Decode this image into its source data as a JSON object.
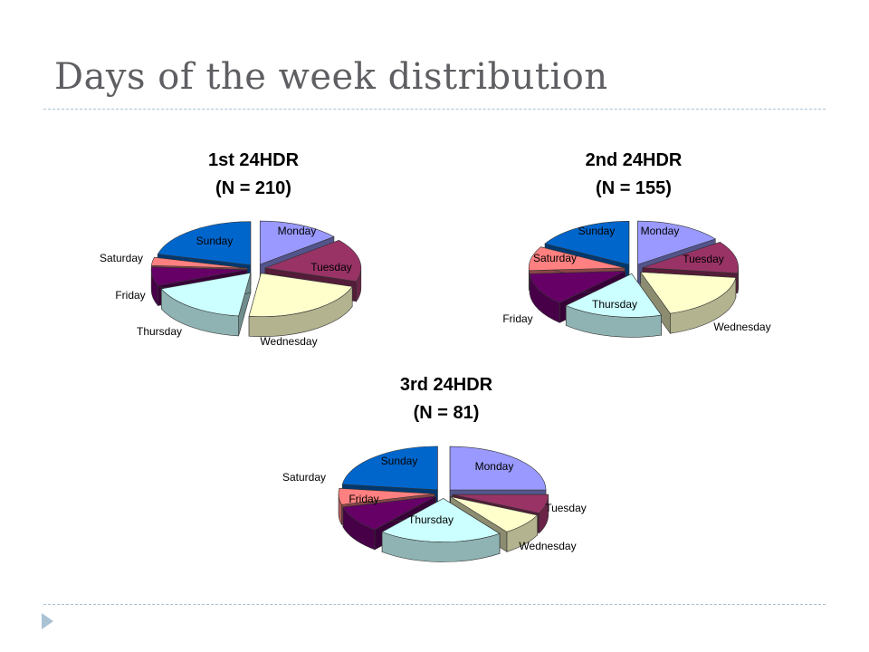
{
  "slide": {
    "title": "Days of the week distribution"
  },
  "colors": {
    "Monday": "#9999ff",
    "Tuesday": "#993366",
    "Wednesday": "#ffffcc",
    "Thursday": "#ccffff",
    "Friday": "#660066",
    "Saturday": "#ff8080",
    "Sunday": "#0066cc"
  },
  "chart_data": [
    {
      "type": "pie",
      "title": "1st 24HDR",
      "subtitle": "(N = 210)",
      "categories": [
        "Monday",
        "Tuesday",
        "Wednesday",
        "Thursday",
        "Friday",
        "Saturday",
        "Sunday"
      ],
      "values": [
        14,
        16,
        22,
        17,
        7,
        3,
        21
      ],
      "explode": true,
      "legend": "none"
    },
    {
      "type": "pie",
      "title": "2nd 24HDR",
      "subtitle": "(N = 155)",
      "categories": [
        "Monday",
        "Tuesday",
        "Wednesday",
        "Thursday",
        "Friday",
        "Saturday",
        "Sunday"
      ],
      "values": [
        15,
        12,
        18,
        17,
        12,
        9,
        17
      ],
      "explode": true,
      "legend": "none"
    },
    {
      "type": "pie",
      "title": "3rd 24HDR",
      "subtitle": "(N = 81)",
      "categories": [
        "Monday",
        "Tuesday",
        "Wednesday",
        "Thursday",
        "Friday",
        "Saturday",
        "Sunday"
      ],
      "values": [
        25,
        7,
        8,
        21,
        10,
        6,
        23
      ],
      "explode": true,
      "legend": "none"
    }
  ]
}
